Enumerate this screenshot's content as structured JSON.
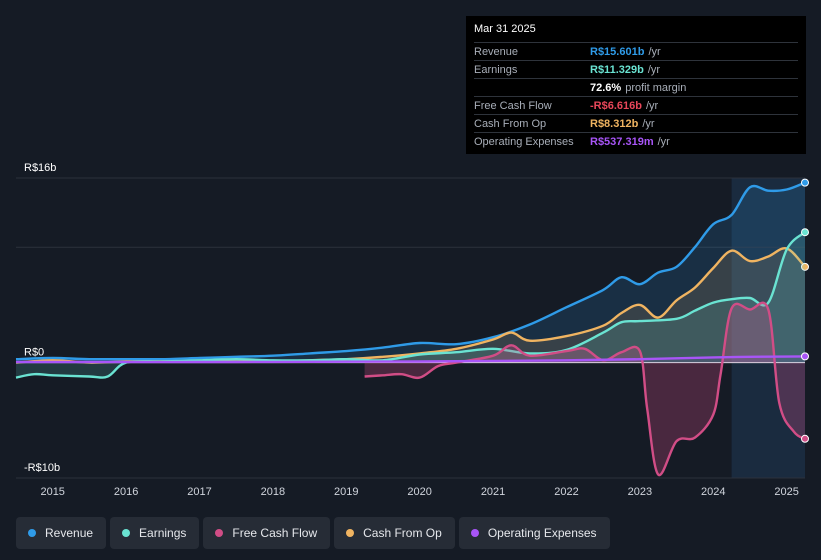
{
  "tooltip": {
    "date": "Mar 31 2025",
    "rows": [
      {
        "label": "Revenue",
        "value": "R$15.601b",
        "unit": "/yr",
        "color": "#2f9be8"
      },
      {
        "label": "Earnings",
        "value": "R$11.329b",
        "unit": "/yr",
        "color": "#6ae3d2"
      },
      {
        "label": "",
        "value": "72.6%",
        "unit": "profit margin",
        "color": "#ffffff"
      },
      {
        "label": "Free Cash Flow",
        "value": "-R$6.616b",
        "unit": "/yr",
        "color": "#e8475a"
      },
      {
        "label": "Cash From Op",
        "value": "R$8.312b",
        "unit": "/yr",
        "color": "#f0b461"
      },
      {
        "label": "Operating Expenses",
        "value": "R$537.319m",
        "unit": "/yr",
        "color": "#a855f7"
      }
    ]
  },
  "legend": [
    {
      "label": "Revenue",
      "color": "#2f9be8"
    },
    {
      "label": "Earnings",
      "color": "#6ae3d2"
    },
    {
      "label": "Free Cash Flow",
      "color": "#d14d86"
    },
    {
      "label": "Cash From Op",
      "color": "#f0b461"
    },
    {
      "label": "Operating Expenses",
      "color": "#a855f7"
    }
  ],
  "chart_data": {
    "type": "area",
    "y_tick_labels": [
      "R$16b",
      "R$0",
      "-R$10b"
    ],
    "ylim": [
      -10,
      16
    ],
    "xlim": [
      2014.5,
      2025.25
    ],
    "x_tick_labels": [
      "2015",
      "2016",
      "2017",
      "2018",
      "2019",
      "2020",
      "2021",
      "2022",
      "2023",
      "2024",
      "2025"
    ],
    "highlight_from": 2024.25,
    "series": [
      {
        "name": "Revenue",
        "color": "#2f9be8",
        "points": [
          [
            2014.5,
            0.3
          ],
          [
            2015,
            0.4
          ],
          [
            2015.5,
            0.3
          ],
          [
            2016,
            0.3
          ],
          [
            2016.5,
            0.3
          ],
          [
            2017,
            0.4
          ],
          [
            2017.5,
            0.5
          ],
          [
            2018,
            0.6
          ],
          [
            2018.5,
            0.8
          ],
          [
            2019,
            1.0
          ],
          [
            2019.5,
            1.3
          ],
          [
            2020,
            1.7
          ],
          [
            2020.5,
            1.6
          ],
          [
            2021,
            2.2
          ],
          [
            2021.5,
            3.3
          ],
          [
            2022,
            4.8
          ],
          [
            2022.5,
            6.3
          ],
          [
            2022.75,
            7.4
          ],
          [
            2023,
            6.8
          ],
          [
            2023.25,
            7.8
          ],
          [
            2023.5,
            8.3
          ],
          [
            2023.75,
            10.0
          ],
          [
            2024,
            12.0
          ],
          [
            2024.25,
            12.8
          ],
          [
            2024.5,
            15.2
          ],
          [
            2024.75,
            14.9
          ],
          [
            2025,
            15.0
          ],
          [
            2025.25,
            15.6
          ]
        ]
      },
      {
        "name": "Earnings",
        "color": "#6ae3d2",
        "points": [
          [
            2014.5,
            -1.3
          ],
          [
            2014.75,
            -1.0
          ],
          [
            2015,
            -1.1
          ],
          [
            2015.5,
            -1.2
          ],
          [
            2015.75,
            -1.2
          ],
          [
            2016,
            0.0
          ],
          [
            2016.5,
            0.1
          ],
          [
            2017,
            0.2
          ],
          [
            2017.5,
            0.3
          ],
          [
            2018,
            0.2
          ],
          [
            2018.5,
            0.2
          ],
          [
            2019,
            0.3
          ],
          [
            2019.5,
            0.2
          ],
          [
            2020,
            0.7
          ],
          [
            2020.5,
            0.9
          ],
          [
            2021,
            1.2
          ],
          [
            2021.5,
            0.8
          ],
          [
            2022,
            1.1
          ],
          [
            2022.5,
            2.6
          ],
          [
            2022.75,
            3.5
          ],
          [
            2023,
            3.6
          ],
          [
            2023.5,
            3.8
          ],
          [
            2023.75,
            4.5
          ],
          [
            2024,
            5.2
          ],
          [
            2024.25,
            5.5
          ],
          [
            2024.5,
            5.6
          ],
          [
            2024.75,
            5.2
          ],
          [
            2025,
            9.8
          ],
          [
            2025.25,
            11.3
          ]
        ]
      },
      {
        "name": "Free Cash Flow",
        "color": "#d14d86",
        "points": [
          [
            2019.25,
            -1.2
          ],
          [
            2019.5,
            -1.1
          ],
          [
            2019.75,
            -1.0
          ],
          [
            2020,
            -1.3
          ],
          [
            2020.25,
            -0.3
          ],
          [
            2020.5,
            0.0
          ],
          [
            2021,
            0.6
          ],
          [
            2021.25,
            1.5
          ],
          [
            2021.5,
            0.6
          ],
          [
            2022,
            1.0
          ],
          [
            2022.25,
            1.2
          ],
          [
            2022.5,
            0.2
          ],
          [
            2022.75,
            0.9
          ],
          [
            2023,
            1.0
          ],
          [
            2023.1,
            -4.0
          ],
          [
            2023.25,
            -9.7
          ],
          [
            2023.5,
            -6.8
          ],
          [
            2023.75,
            -6.5
          ],
          [
            2024,
            -4.5
          ],
          [
            2024.1,
            -1.0
          ],
          [
            2024.25,
            4.7
          ],
          [
            2024.5,
            4.6
          ],
          [
            2024.75,
            4.6
          ],
          [
            2024.9,
            -3.5
          ],
          [
            2025.1,
            -6.0
          ],
          [
            2025.25,
            -6.6
          ]
        ]
      },
      {
        "name": "Cash From Op",
        "color": "#f0b461",
        "points": [
          [
            2014.5,
            0.0
          ],
          [
            2015,
            0.2
          ],
          [
            2015.5,
            0.0
          ],
          [
            2016,
            0.1
          ],
          [
            2016.5,
            0.1
          ],
          [
            2017,
            0.1
          ],
          [
            2017.5,
            0.1
          ],
          [
            2018,
            0.1
          ],
          [
            2018.5,
            0.2
          ],
          [
            2019,
            0.3
          ],
          [
            2019.5,
            0.5
          ],
          [
            2020,
            0.8
          ],
          [
            2020.5,
            1.2
          ],
          [
            2021,
            2.0
          ],
          [
            2021.25,
            2.6
          ],
          [
            2021.5,
            1.9
          ],
          [
            2022,
            2.3
          ],
          [
            2022.5,
            3.2
          ],
          [
            2022.75,
            4.3
          ],
          [
            2023,
            5.0
          ],
          [
            2023.25,
            3.9
          ],
          [
            2023.5,
            5.4
          ],
          [
            2023.75,
            6.5
          ],
          [
            2024,
            8.2
          ],
          [
            2024.25,
            9.7
          ],
          [
            2024.5,
            8.8
          ],
          [
            2024.75,
            9.2
          ],
          [
            2025,
            9.9
          ],
          [
            2025.25,
            8.3
          ]
        ]
      },
      {
        "name": "Operating Expenses",
        "color": "#a855f7",
        "points": [
          [
            2014.5,
            0.05
          ],
          [
            2015,
            0.05
          ],
          [
            2016,
            0.05
          ],
          [
            2017,
            0.05
          ],
          [
            2018,
            0.06
          ],
          [
            2019,
            0.08
          ],
          [
            2020,
            0.1
          ],
          [
            2021,
            0.15
          ],
          [
            2022,
            0.2
          ],
          [
            2023,
            0.3
          ],
          [
            2024,
            0.45
          ],
          [
            2024.5,
            0.5
          ],
          [
            2025,
            0.52
          ],
          [
            2025.25,
            0.54
          ]
        ]
      }
    ]
  }
}
